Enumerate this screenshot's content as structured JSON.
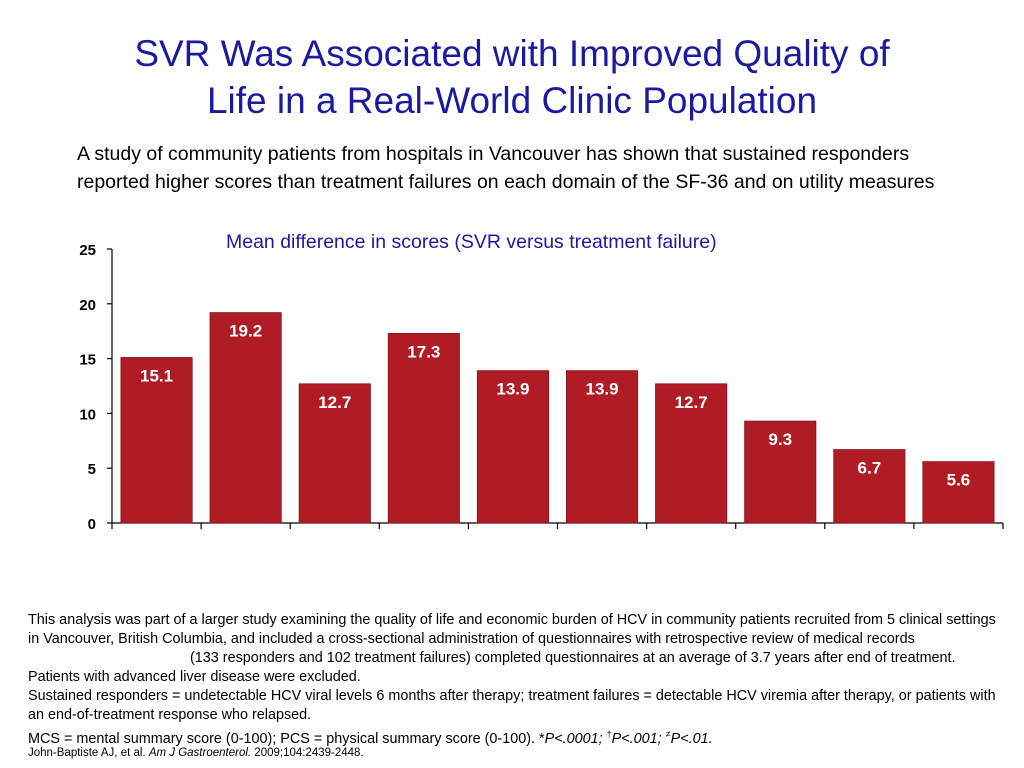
{
  "title": {
    "line1": "SVR Was Associated with Improved Quality of",
    "line2": "Life in a Real-World Clinic Population"
  },
  "lead": "A study of community patients from hospitals in Vancouver has shown that sustained responders reported higher scores than treatment failures on each domain of the SF-36 and on utility measures",
  "chart_subtitle": "Mean difference in scores (SVR versus treatment failure)",
  "chart_data": {
    "type": "bar",
    "title": "Mean difference in scores (SVR versus treatment failure)",
    "values": [
      15.1,
      19.2,
      12.7,
      17.3,
      13.9,
      13.9,
      12.7,
      9.3,
      6.7,
      5.6
    ],
    "value_labels": [
      "15.1",
      "19.2",
      "12.7",
      "17.3",
      "13.9",
      "13.9",
      "12.7",
      "9.3",
      "6.7",
      "5.6"
    ],
    "yticks": [
      "0",
      "5",
      "10",
      "15",
      "20",
      "25"
    ],
    "ylim": [
      0,
      25
    ],
    "bar_color": "#b01c26",
    "grid": false,
    "xlabel": "",
    "ylabel": ""
  },
  "notes": {
    "p1a": "This analysis was part of a larger study examining the quality of life and economic burden of HCV in community patients recruited from 5 clinical settings in Vancouver, British Columbia, and included a cross-sectional administration of questionnaires with retrospective review of medical records",
    "p1b": "(133 responders and 102 treatment failures) completed questionnaires at an average of 3.7 years after end of treatment. Patients with advanced liver disease were excluded.",
    "p2": "Sustained responders = undetectable HCV viral levels 6 months after therapy; treatment failures = detectable HCV viremia after therapy, or patients with an end-of-treatment response who relapsed.",
    "p3_text": "MCS = mental summary score (0-100); PCS = physical summary score (0-100).",
    "p3_star": "*",
    "p3_p1": "P<.0001;",
    "p3_dagger": "†",
    "p3_p2": "P<.001;",
    "p3_ddagger": "≠",
    "p3_p3": "P<.01."
  },
  "citation": {
    "authors": "John-Baptiste AJ, et al.",
    "journal": "Am J Gastroenterol.",
    "details": "2009;104:2439-2448."
  }
}
